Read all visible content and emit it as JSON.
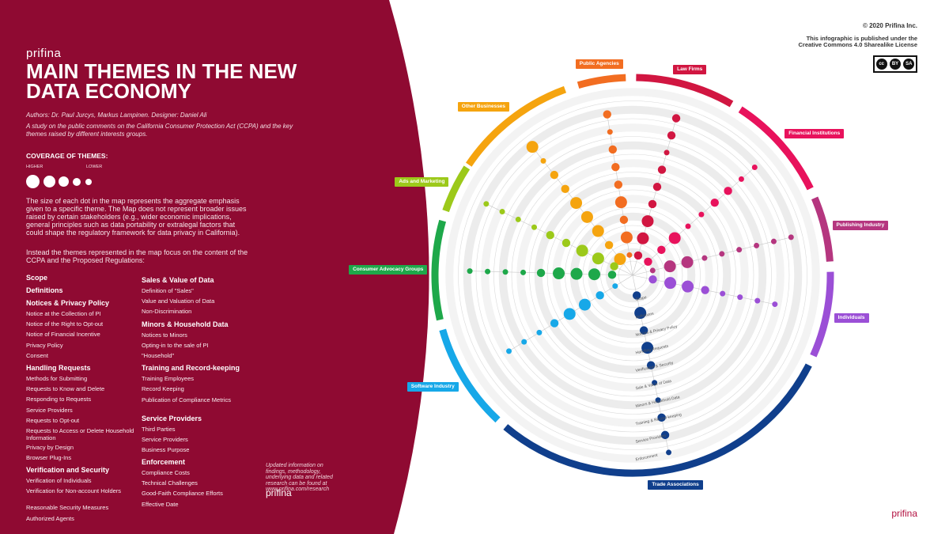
{
  "brand": "prifina",
  "title": "MAIN THEMES IN THE NEW DATA ECONOMY",
  "authors": "Authors: Dr. Paul Jurcys, Markus Lampinen. Designer: Daniel Ali",
  "study": "A study on the public comments on the California Consumer Protection Act (CCPA) and the key themes raised by different interests groups.",
  "coverage": {
    "title": "COVERAGE OF THEMES:",
    "higher": "HIGHER",
    "lower": "LOWER"
  },
  "paragraph1": "The size of each dot in the map represents the aggregate emphasis given to a specific theme. The Map does not represent broader issues raised by certain stakeholders (e.g., wider economic implications, general principles such as data portability or extralegal factors that could shape the regulatory framework for data privacy in California).",
  "paragraph2": "Instead the themes represented in the map focus on the content of the CCPA and the Proposed Regulations:",
  "themes_col1": [
    {
      "heading": "Scope",
      "items": []
    },
    {
      "heading": "Definitions",
      "items": []
    },
    {
      "heading": "Notices & Privacy Policy",
      "items": [
        "Notice at the Collection of PI",
        "Notice of the Right to Opt-out",
        "Notice of Financial Incentive",
        "Privacy Policy",
        "Consent"
      ]
    },
    {
      "heading": "Handling Requests",
      "items": [
        "Methods for Submitting",
        "Requests to Know and Delete",
        "Responding to Requests",
        "Service Providers",
        "Requests to Opt-out",
        "Requests to Access or Delete Household Information",
        "Privacy by Design",
        "Browser Plug-Ins"
      ]
    },
    {
      "heading": "Verification and Security",
      "items": [
        "Verification of Individuals",
        "Verification for Non-account Holders",
        "Reasonable Security Measures",
        "Authorized Agents"
      ]
    }
  ],
  "themes_col2": [
    {
      "heading": "Sales & Value of Data",
      "items": [
        "Definition of \"Sales\"",
        "Value and Valuation of Data",
        "Non-Discrimination"
      ]
    },
    {
      "heading": "Minors & Household Data",
      "items": [
        "Notices to Minors",
        "Opting-in to the sale of PI",
        "\"Household\""
      ]
    },
    {
      "heading": "Training and Record-keeping",
      "items": [
        "Training Employees",
        "Record Keeping",
        "Publication of Compliance Metrics"
      ]
    },
    {
      "heading": "Service Providers",
      "items": [
        "Third Parties",
        "Service Providers",
        "Business Purpose"
      ]
    },
    {
      "heading": "Enforcement",
      "items": [
        "Compliance Costs",
        "Technical Challenges",
        "Good-Faith Compliance Efforts",
        "Effective Date"
      ]
    }
  ],
  "update_note": "Updated information on findings, methodology, underlying data and related research can be found at www.prifina.com/research",
  "copyright": "© 2020 Prifina Inc.",
  "license": "This infographic is published under the Creative Commons 4.0 Sharealike License",
  "cc_badge": {
    "cc": "cc",
    "by": "BY",
    "sa": "SA"
  },
  "colors": {
    "left_panel": "#8f0a32",
    "ring_guide": "#dddddd"
  },
  "diagram": {
    "ring_labels": [
      "Scope",
      "Definitions",
      "Notices & Privacy Policy",
      "Handling Requests",
      "Verification & Security",
      "Sale & Value of Data",
      "Minors & Household Data",
      "Training & Record-keeping",
      "Service Providers",
      "Enforcement"
    ],
    "groups": [
      {
        "name": "Other Businesses",
        "color": "#f5a40f",
        "sizes": [
          3,
          2,
          3,
          3,
          3,
          2,
          2,
          1,
          3
        ],
        "angles": [
          -146,
          -110
        ]
      },
      {
        "name": "Public Agencies",
        "color": "#f26d21",
        "sizes": [
          1,
          3,
          2,
          3,
          2,
          2,
          2,
          1,
          2
        ],
        "angles": [
          -106,
          -92
        ]
      },
      {
        "name": "Law Firms",
        "color": "#d11641",
        "sizes": [
          2,
          3,
          3,
          2,
          2,
          2,
          1,
          2,
          2
        ],
        "angles": [
          -89,
          -60
        ]
      },
      {
        "name": "Financial Institutions",
        "color": "#e8125c",
        "sizes": [
          2,
          2,
          3,
          1,
          1,
          2,
          2,
          1,
          1
        ],
        "angles": [
          -57,
          -26
        ]
      },
      {
        "name": "Publishing Industry",
        "color": "#b5367f",
        "sizes": [
          1,
          3,
          3,
          1,
          1,
          1,
          1,
          1,
          1
        ],
        "angles": [
          -23,
          -4
        ]
      },
      {
        "name": "Individuals",
        "color": "#9b4fd6",
        "sizes": [
          2,
          3,
          3,
          2,
          1,
          1,
          1,
          1
        ],
        "angles": [
          -1,
          24
        ]
      },
      {
        "name": "Trade Associations",
        "color": "#103f8c",
        "sizes": [
          2,
          3,
          2,
          3,
          2,
          1,
          1,
          2,
          2,
          1
        ],
        "angles": [
          27,
          130
        ]
      },
      {
        "name": "Software Industry",
        "color": "#17a8e8",
        "sizes": [
          1,
          2,
          3,
          3,
          2,
          1,
          1,
          1
        ],
        "angles": [
          133,
          164
        ]
      },
      {
        "name": "Consumer Advocacy Groups",
        "color": "#1ea84a",
        "sizes": [
          2,
          3,
          3,
          3,
          2,
          1,
          1,
          1,
          1
        ],
        "angles": [
          167,
          196
        ]
      },
      {
        "name": "Ads and Marketing",
        "color": "#9cc91a",
        "sizes": [
          2,
          3,
          3,
          2,
          2,
          1,
          1,
          1,
          1
        ],
        "angles": [
          199,
          213
        ]
      }
    ]
  }
}
